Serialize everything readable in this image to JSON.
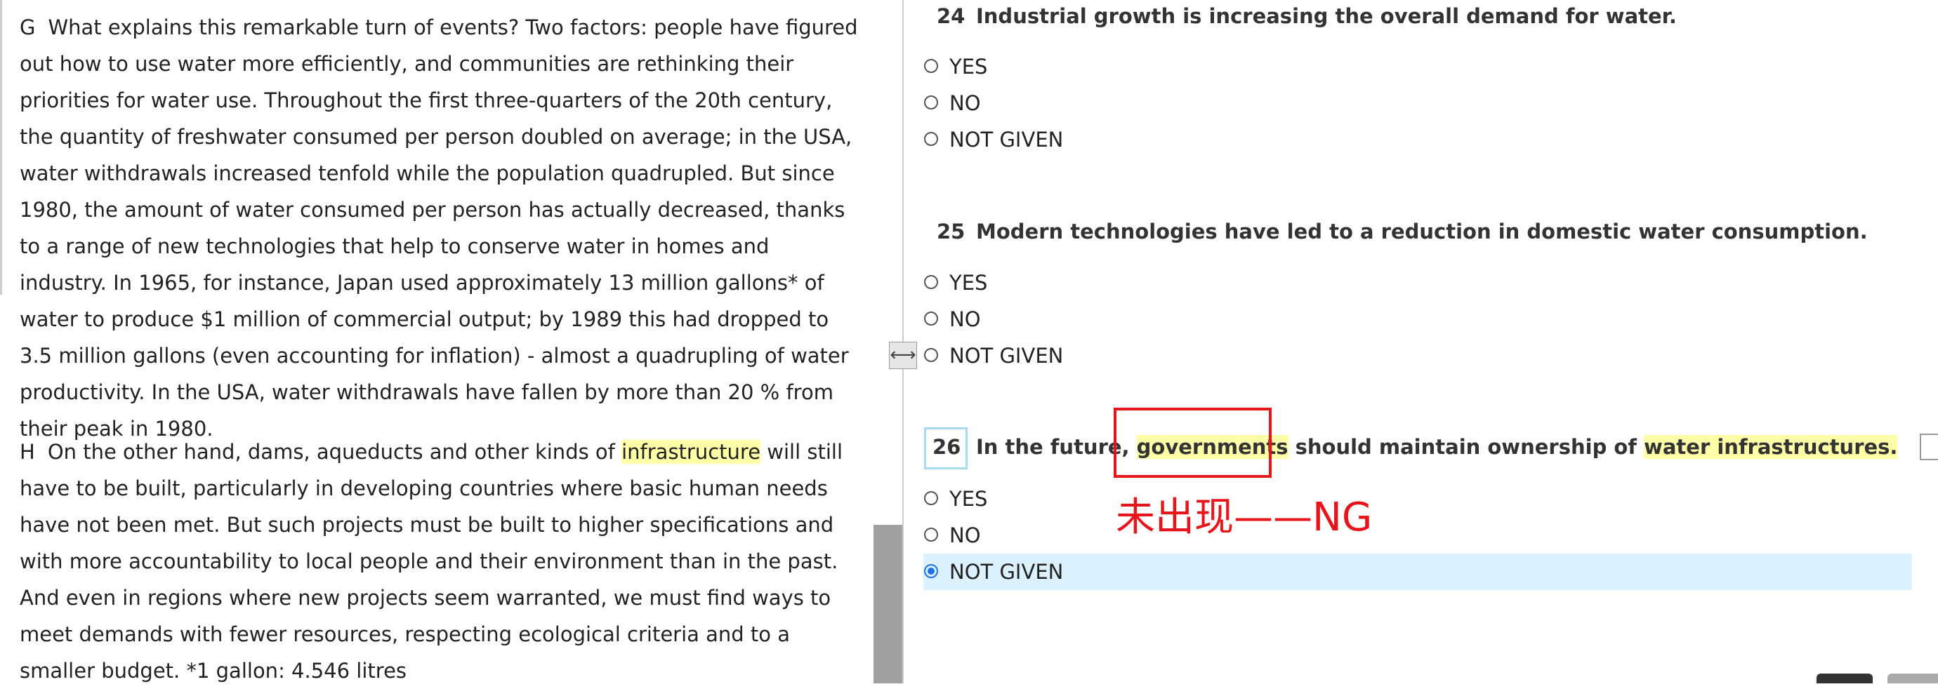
{
  "passage": {
    "paragraphs": [
      {
        "label": "G",
        "text": "What explains this remarkable turn of events? Two factors: people have figured out how to use water more efficiently, and communities are rethinking their priorities for water use. Throughout the first three-quarters of the 20th century, the quantity of freshwater consumed per person doubled on average; in the USA, water withdrawals increased tenfold while the population quadrupled. But since 1980, the amount of water consumed per person has actually decreased, thanks to a range of new technologies that help to conserve water in homes and industry. In 1965, for instance, Japan used approximately 13 million gallons* of water to produce $1 million of commercial output; by 1989 this had dropped to 3.5 million gallons (even accounting for inflation) - almost a quadrupling of water productivity. In the USA, water withdrawals have fallen by more than 20 % from their peak in 1980."
      },
      {
        "label": "H",
        "parts": [
          "On the other hand, dams, aqueducts and other kinds of ",
          "infrastructure",
          " will still have to be built, particularly in developing countries where basic human needs have not been met. But such projects must be built to higher specifications and with more accountability to local people and their environment than in the past. And even in regions where new projects seem warranted, we must find ways to meet demands with fewer resources, respecting ecological criteria and to a smaller budget. *1 gallon: 4.546 litres"
        ]
      }
    ]
  },
  "questions": [
    {
      "number": "24",
      "parts": [
        "Industrial growth is increasing the overall demand for water."
      ],
      "options": [
        "YES",
        "NO",
        "NOT GIVEN"
      ]
    },
    {
      "number": "25",
      "parts": [
        "Modern technologies have led to a reduction in domestic water consumption."
      ],
      "options": [
        "YES",
        "NO",
        "NOT GIVEN"
      ]
    },
    {
      "number": "26",
      "parts": [
        "In the future, ",
        "governments",
        " should maintain ownership of ",
        "water infrastructures."
      ],
      "options": [
        "YES",
        "NO",
        "NOT GIVEN"
      ],
      "selected": 2
    }
  ],
  "annotation": "未出现——NG"
}
